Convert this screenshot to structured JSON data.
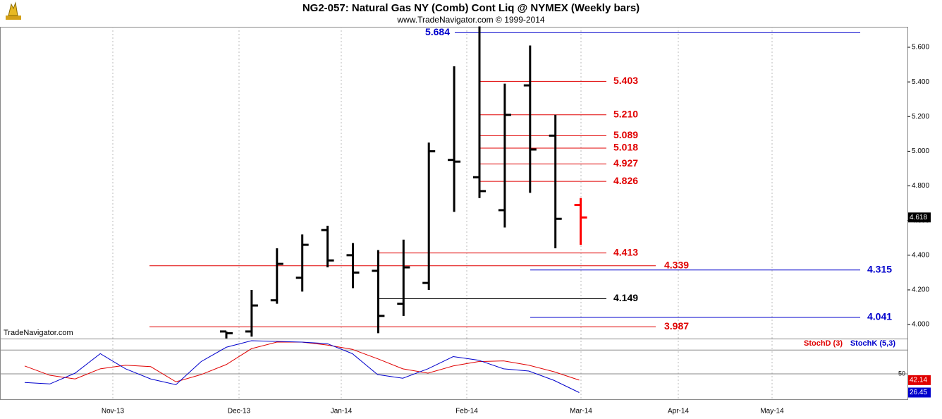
{
  "chart_data": [
    {
      "type": "ohlc",
      "title": "NG2-057:  Natural Gas NY (Comb) Cont Liq @ NYMEX  (Weekly bars)",
      "subtitle": "www.TradeNavigator.com © 1999-2014",
      "watermark": "TradeNavigator.com",
      "months": [
        "Nov-13",
        "Dec-13",
        "Jan-14",
        "Feb-14",
        "Mar-14",
        "Apr-14",
        "May-14"
      ],
      "ylim": [
        3.919,
        5.718
      ],
      "yticks": [
        {
          "value": 4,
          "label": "4.000"
        },
        {
          "value": 4.2,
          "label": "4.200"
        },
        {
          "value": 4.4,
          "label": "4.400"
        },
        {
          "value": 4.6,
          "label": "4.600"
        },
        {
          "value": 4.8,
          "label": "4.800"
        },
        {
          "value": 5,
          "label": "5.000"
        },
        {
          "value": 5.2,
          "label": "5.200"
        },
        {
          "value": 5.4,
          "label": "5.400"
        },
        {
          "value": 5.6,
          "label": "5.600"
        }
      ],
      "colors": [
        "#000000",
        "#000000",
        "#000000",
        "#000000",
        "#000000",
        "#000000",
        "#000000",
        "#000000",
        "#000000",
        "#000000",
        "#000000",
        "#000000",
        "#000000",
        "#000000",
        "#ff0000"
      ],
      "open": [
        3.96,
        3.96,
        4.14,
        4.27,
        4.545,
        4.4,
        4.31,
        4.12,
        4.24,
        4.95,
        4.85,
        4.66,
        5.38,
        5.09,
        4.69
      ],
      "high": [
        3.96,
        4.2,
        4.44,
        4.52,
        4.57,
        4.47,
        4.43,
        4.49,
        5.05,
        5.49,
        5.72,
        5.39,
        5.61,
        5.21,
        4.73
      ],
      "low": [
        3.92,
        3.93,
        4.12,
        4.19,
        4.33,
        4.21,
        3.95,
        4.05,
        4.2,
        4.65,
        4.73,
        4.56,
        4.76,
        4.44,
        4.46
      ],
      "close": [
        3.95,
        4.11,
        4.35,
        4.46,
        4.37,
        4.3,
        4.05,
        4.33,
        5.0,
        4.94,
        4.77,
        5.21,
        5.01,
        4.61,
        4.618
      ],
      "last": 4.618,
      "levels": [
        {
          "value": 5.684,
          "label": "5.684",
          "color": "#0000cc"
        },
        {
          "value": 5.403,
          "label": "5.403",
          "color": "#e00000"
        },
        {
          "value": 5.21,
          "label": "5.210",
          "color": "#e00000"
        },
        {
          "value": 5.089,
          "label": "5.089",
          "color": "#e00000"
        },
        {
          "value": 5.018,
          "label": "5.018",
          "color": "#e00000"
        },
        {
          "value": 4.927,
          "label": "4.927",
          "color": "#e00000"
        },
        {
          "value": 4.826,
          "label": "4.826",
          "color": "#e00000"
        },
        {
          "value": 4.413,
          "label": "4.413",
          "color": "#e00000"
        },
        {
          "value": 4.339,
          "label": "4.339",
          "color": "#e00000"
        },
        {
          "value": 4.315,
          "label": "4.315",
          "color": "#0000cc"
        },
        {
          "value": 4.149,
          "label": "4.149",
          "color": "#000000"
        },
        {
          "value": 4.041,
          "label": "4.041",
          "color": "#0000cc"
        },
        {
          "value": 3.987,
          "label": "3.987",
          "color": "#e00000"
        }
      ]
    },
    {
      "type": "line",
      "ylim": [
        18,
        94.5
      ],
      "yticks": [
        50
      ],
      "reference_lines": [
        80
      ],
      "series": [
        {
          "name": "StochD (3)",
          "color": "#e00000",
          "values": [
            60,
            48.2,
            43.6,
            56.4,
            60.9,
            59.1,
            40,
            49.1,
            61.8,
            81.8,
            90,
            90,
            86.4,
            80.9,
            69.1,
            56.4,
            50.9,
            60,
            65.5,
            66.4,
            60.9,
            52.7,
            42.14
          ]
        },
        {
          "name": "StochK (5,3)",
          "color": "#0000cc",
          "values": [
            39.1,
            37.3,
            50.9,
            75.5,
            56.4,
            43.6,
            36.4,
            65.5,
            83.6,
            91.8,
            90.9,
            90,
            88.2,
            75.5,
            49.1,
            44.5,
            56.4,
            71.8,
            67.3,
            56.4,
            53.6,
            41.8,
            26.45
          ]
        }
      ]
    }
  ]
}
